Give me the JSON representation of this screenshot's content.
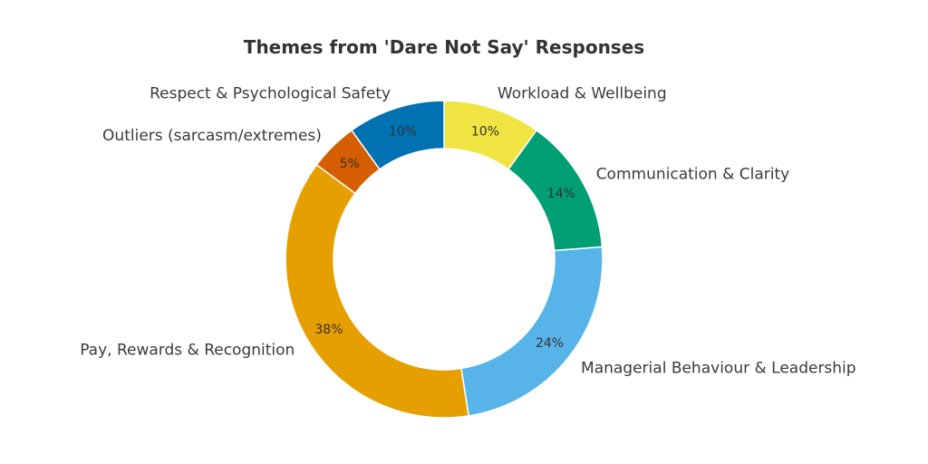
{
  "chart_data": {
    "type": "pie",
    "title": "Themes from 'Dare Not Say' Responses",
    "donut": true,
    "start_angle_deg": 90,
    "direction": "clockwise",
    "legend": "none",
    "slices": [
      {
        "label": "Workload & Wellbeing",
        "value": 10,
        "pct_label": "10%",
        "color": "#F0E442"
      },
      {
        "label": "Communication & Clarity",
        "value": 14,
        "pct_label": "14%",
        "color": "#009E73"
      },
      {
        "label": "Managerial Behaviour & Leadership",
        "value": 24,
        "pct_label": "24%",
        "color": "#56B4E9"
      },
      {
        "label": "Pay, Rewards & Recognition",
        "value": 38,
        "pct_label": "38%",
        "color": "#E69F00"
      },
      {
        "label": "Outliers (sarcasm/extremes)",
        "value": 5,
        "pct_label": "5%",
        "color": "#D55E00"
      },
      {
        "label": "Respect & Psychological Safety",
        "value": 10,
        "pct_label": "10%",
        "color": "#0072B2"
      }
    ]
  }
}
